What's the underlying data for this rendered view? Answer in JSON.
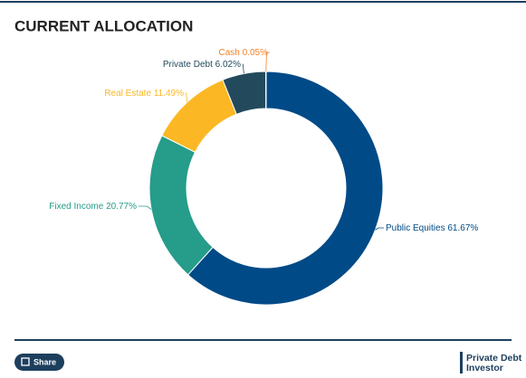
{
  "chart_data": {
    "type": "donut",
    "title": "CURRENT ALLOCATION",
    "categories": [
      "Public Equities",
      "Fixed Income",
      "Real Estate",
      "Private Debt",
      "Cash"
    ],
    "values": [
      61.67,
      20.77,
      11.49,
      6.02,
      0.05
    ],
    "value_labels": [
      "61.67%",
      "20.77%",
      "11.49%",
      "6.02%",
      "0.05%"
    ],
    "colors": [
      "#004a87",
      "#269c8a",
      "#fbb824",
      "#234a5c",
      "#f58025"
    ]
  },
  "footer": {
    "share_button": "Share",
    "logo": [
      "Private Debt",
      "Investor"
    ]
  }
}
